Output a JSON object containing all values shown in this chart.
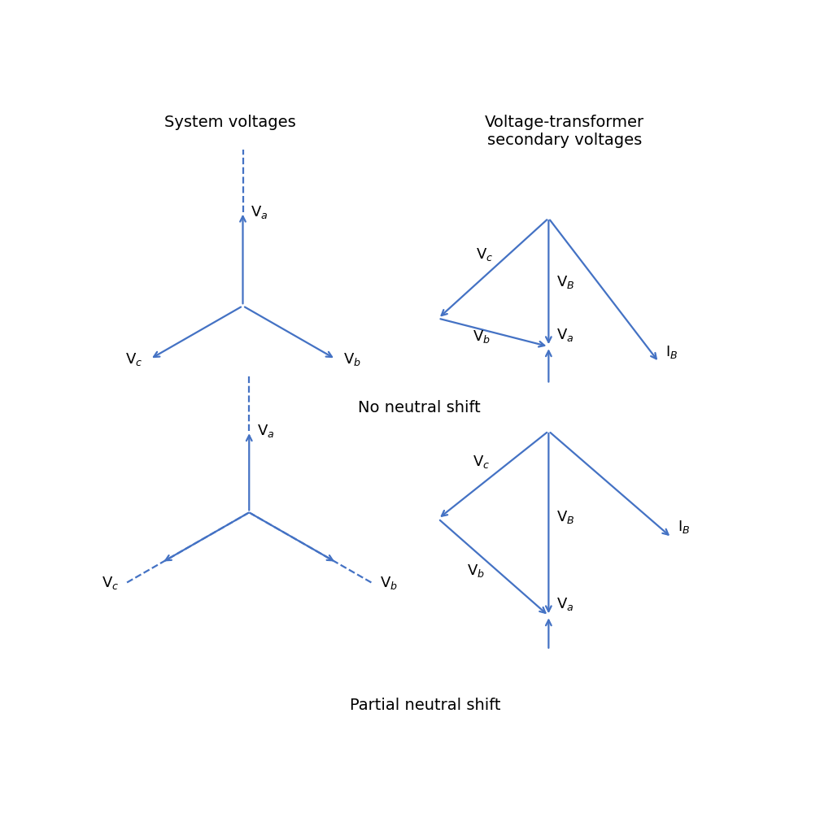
{
  "color": "#4472C4",
  "bg_color": "#ffffff",
  "title_color": "#000000",
  "title_fontsize": 14,
  "label_fontsize": 13,
  "top_left_title": "System voltages",
  "top_right_title": "Voltage-transformer\nsecondary voltages",
  "no_neutral_label": "No neutral shift",
  "partial_neutral_label": "Partial neutral shift",
  "arrow_lw": 1.6,
  "arrow_ms": 12
}
